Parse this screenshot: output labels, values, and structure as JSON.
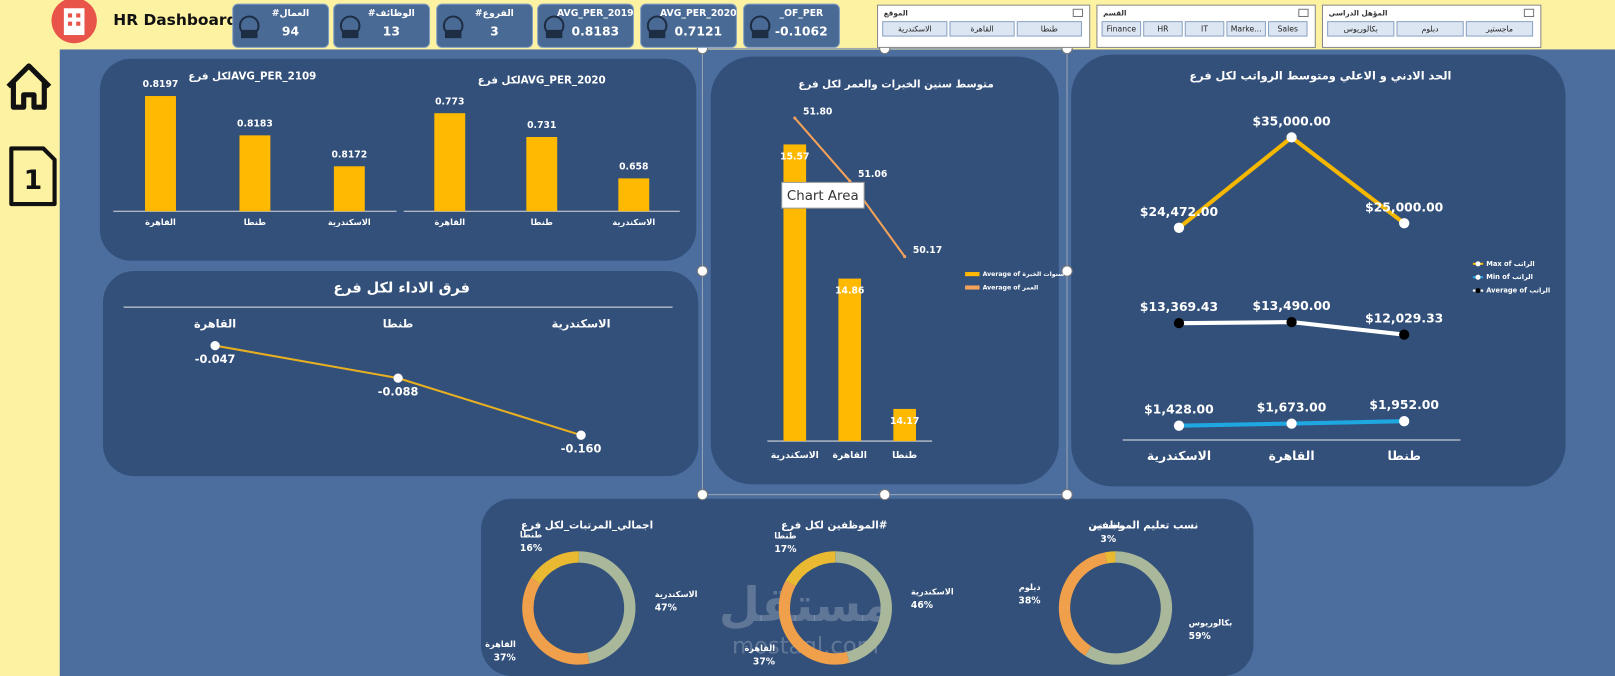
{
  "header": {
    "title": "HR Dashboard"
  },
  "nav": {
    "page": "1"
  },
  "kpis": [
    {
      "label": "#العمال",
      "value": 94
    },
    {
      "label": "#الوظائف",
      "value": 13
    },
    {
      "label": "#الفروع",
      "value": 3
    },
    {
      "label": "AVG_PER_2019",
      "value": 0.8183
    },
    {
      "label": "AVG_PER_2020",
      "value": 0.7121
    },
    {
      "label": "_OF_PER",
      "value": -0.1062
    }
  ],
  "slicers": [
    {
      "title": "الموقع",
      "items": [
        "الاسكندرية",
        "القاهرة",
        "طنطا"
      ]
    },
    {
      "title": "القسم",
      "items": [
        "Finance",
        "HR",
        "IT",
        "Marke...",
        "Sales"
      ]
    },
    {
      "title": "المؤهل الدراسي",
      "items": [
        "بكالوريوس",
        "دبلوم",
        "ماجستير"
      ]
    }
  ],
  "tooltip": "Chart Area",
  "watermark": {
    "brand": "مستقل",
    "url": "mostaql.com"
  },
  "chart_data": [
    {
      "type": "bar",
      "title": "AVG_PER_2109لكل فرع",
      "categories": [
        "القاهرة",
        "طنطا",
        "الاسكندرية"
      ],
      "values": [
        0.8197,
        0.8183,
        0.8172
      ],
      "color": "#ffb900",
      "ylim": [
        0.8156,
        0.82
      ]
    },
    {
      "type": "bar",
      "title": "AVG_PER_2020لكل فرع",
      "categories": [
        "القاهرة",
        "طنطا",
        "الاسكندرية"
      ],
      "values": [
        0.773,
        0.731,
        0.658
      ],
      "color": "#ffb900",
      "ylim": [
        0.6,
        0.8
      ]
    },
    {
      "type": "line",
      "title": "فرق الاداء لكل فرع",
      "categories": [
        "القاهرة",
        "طنطا",
        "الاسكندرية"
      ],
      "values": [
        -0.047,
        -0.088,
        -0.16
      ],
      "value_labels": [
        "-0.047",
        "-0.088",
        "-0.160"
      ],
      "color": "#e8b020",
      "ylim": [
        -0.17,
        -0.04
      ]
    },
    {
      "type": "combo",
      "title": "متوسط سنين الخبرات والعمر لكل فرع",
      "categories": [
        "الاسكندرية",
        "القاهرة",
        "طنطا"
      ],
      "series": [
        {
          "name": "Average of سنوات الخبرة",
          "type": "bar",
          "color": "#ffb900",
          "values": [
            15.57,
            14.86,
            14.17
          ]
        },
        {
          "name": "Average of العمر",
          "type": "line",
          "axis": "y2",
          "color": "#f4a259",
          "values": [
            51.8,
            51.06,
            50.17
          ],
          "value_labels": [
            "51.80",
            "51.06",
            "50.17"
          ]
        }
      ],
      "ylim": [
        14,
        15.8
      ],
      "y2lim": [
        48,
        52
      ]
    },
    {
      "type": "line",
      "title": "الحد الادني و الاعلي ومتوسط الرواتب لكل فرع",
      "categories": [
        "الاسكندرية",
        "القاهرة",
        "طنطا"
      ],
      "series": [
        {
          "name": "Max of الراتب",
          "color": "#f5b700",
          "marker_color": "#ffffff",
          "values": [
            24472,
            35000,
            25000
          ],
          "value_labels": [
            "$24,472.00",
            "$35,000.00",
            "$25,000.00"
          ]
        },
        {
          "name": "Min of الراتب",
          "color": "#1ea7e1",
          "marker_color": "#ffffff",
          "values": [
            1428,
            1673,
            1952
          ],
          "value_labels": [
            "$1,428.00",
            "$1,673.00",
            "$1,952.00"
          ]
        },
        {
          "name": "Average of الراتب",
          "color": "#ffffff",
          "marker_color": "#000000",
          "values": [
            13369.43,
            13490,
            12029.33
          ],
          "value_labels": [
            "$13,369.43",
            "$13,490.00",
            "$12,029.33"
          ]
        }
      ],
      "ylim": [
        0,
        36000
      ]
    },
    {
      "type": "donut",
      "title": "اجمالي_المرتبات_لكل فرع",
      "categories": [
        "الاسكندرية",
        "القاهرة",
        "طنطا"
      ],
      "values": [
        47,
        37,
        16
      ],
      "value_labels": [
        "47%",
        "37%",
        "16%"
      ],
      "colors": [
        "#a9b89a",
        "#f0a04b",
        "#e8b931"
      ]
    },
    {
      "type": "donut",
      "title": "#الموظفين لكل فرع",
      "categories": [
        "الاسكندرية",
        "القاهرة",
        "طنطا"
      ],
      "values": [
        46,
        37,
        17
      ],
      "value_labels": [
        "46%",
        "37%",
        "17%"
      ],
      "colors": [
        "#a9b89a",
        "#f0a04b",
        "#e8b931"
      ]
    },
    {
      "type": "donut",
      "title": "نسب تعليم الموظفين",
      "categories": [
        "بكالوريوس",
        "دبلوم",
        "ماجستير"
      ],
      "values": [
        59,
        38,
        3
      ],
      "value_labels": [
        "59%",
        "38%",
        "3%"
      ],
      "colors": [
        "#a9b89a",
        "#f0a04b",
        "#e8b931"
      ]
    }
  ]
}
